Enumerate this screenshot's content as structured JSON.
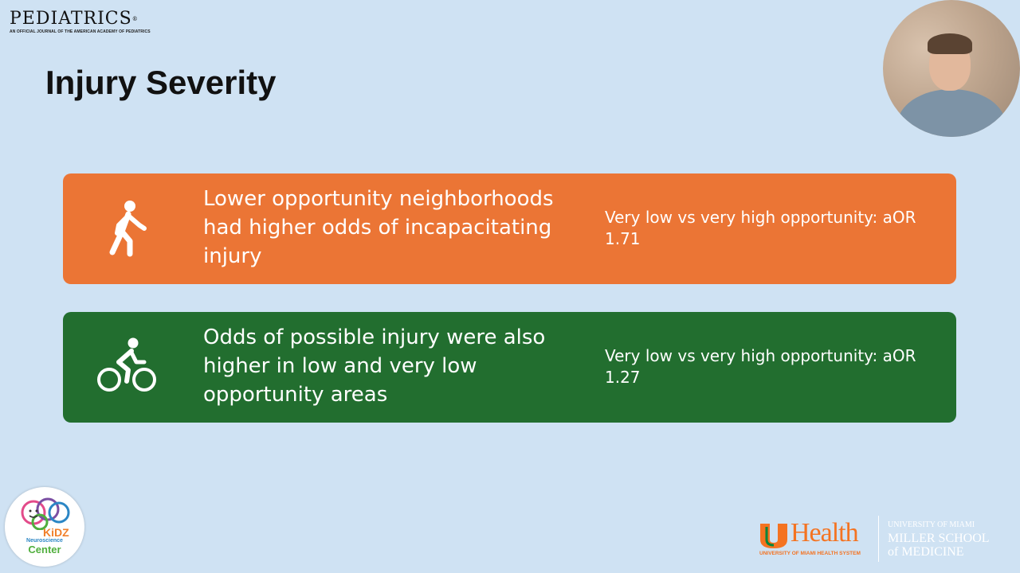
{
  "journal": {
    "name": "PEDIATRICS",
    "registered": "®",
    "tagline": "AN OFFICIAL JOURNAL OF THE AMERICAN ACADEMY OF PEDIATRICS"
  },
  "slide": {
    "title": "Injury Severity",
    "cards": [
      {
        "icon": "pedestrian-icon",
        "color": "#eb7535",
        "main": "Lower opportunity neighborhoods had higher odds of incapacitating injury",
        "stat": "Very low vs very high opportunity: aOR 1.71"
      },
      {
        "icon": "bicycle-icon",
        "color": "#226e2f",
        "main": "Odds of possible injury were also higher in low and very low opportunity areas",
        "stat": "Very low vs very high opportunity: aOR 1.27"
      }
    ]
  },
  "logos": {
    "kidz": {
      "line1": "KiDZ",
      "line2": "Neuroscience",
      "line3": "Center"
    },
    "uhealth": {
      "health": "Health",
      "system": "UNIVERSITY OF MIAMI HEALTH SYSTEM",
      "university": "UNIVERSITY OF MIAMI",
      "school": "MILLER SCHOOL",
      "of_medicine": "of MEDICINE",
      "accent_color": "#f47321"
    }
  }
}
